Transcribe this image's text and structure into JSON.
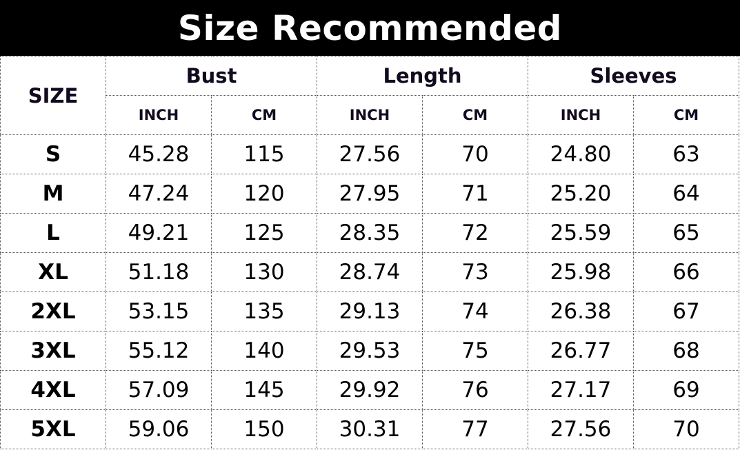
{
  "title": "Size Recommended",
  "headers": {
    "size": "SIZE",
    "groups": [
      "Bust",
      "Length",
      "Sleeves"
    ],
    "units": [
      "INCH",
      "CM",
      "INCH",
      "CM",
      "INCH",
      "CM"
    ]
  },
  "rows": [
    [
      "S",
      "45.28",
      "115",
      "27.56",
      "70",
      "24.80",
      "63"
    ],
    [
      "M",
      "47.24",
      "120",
      "27.95",
      "71",
      "25.20",
      "64"
    ],
    [
      "L",
      "49.21",
      "125",
      "28.35",
      "72",
      "25.59",
      "65"
    ],
    [
      "XL",
      "51.18",
      "130",
      "28.74",
      "73",
      "25.98",
      "66"
    ],
    [
      "2XL",
      "53.15",
      "135",
      "29.13",
      "74",
      "26.38",
      "67"
    ],
    [
      "3XL",
      "55.12",
      "140",
      "29.53",
      "75",
      "26.77",
      "68"
    ],
    [
      "4XL",
      "57.09",
      "145",
      "29.92",
      "76",
      "27.17",
      "69"
    ],
    [
      "5XL",
      "59.06",
      "150",
      "30.31",
      "77",
      "27.56",
      "70"
    ]
  ]
}
